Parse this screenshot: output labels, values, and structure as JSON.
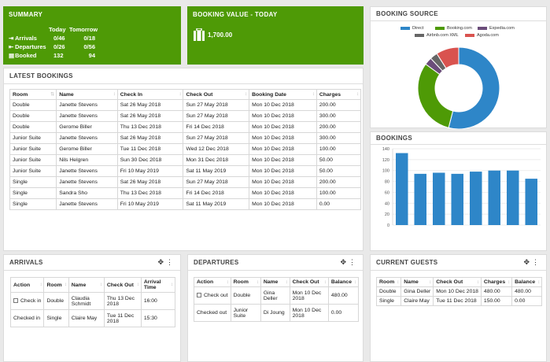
{
  "summary": {
    "title": "SUMMARY",
    "col_today": "Today",
    "col_tomorrow": "Tomorrow",
    "rows": [
      {
        "icon": "arrival-icon",
        "label": "Arrivals",
        "today": "0/46",
        "tomorrow": "0/18"
      },
      {
        "icon": "departure-icon",
        "label": "Departures",
        "today": "0/26",
        "tomorrow": "0/56"
      },
      {
        "icon": "bed-icon",
        "label": "Booked",
        "today": "132",
        "tomorrow": "94"
      }
    ]
  },
  "booking_value": {
    "title": "BOOKING VALUE - TODAY",
    "value": "1,700.00"
  },
  "booking_source": {
    "title": "BOOKING SOURCE",
    "legend": [
      {
        "label": "Direct",
        "color": "#2e86c8"
      },
      {
        "label": "Booking.com",
        "color": "#4e9a06"
      },
      {
        "label": "Expedia.com",
        "color": "#6b4d7a"
      },
      {
        "label": "Airbnb.com XML",
        "color": "#666666"
      },
      {
        "label": "Agoda.com",
        "color": "#d9534f"
      }
    ],
    "chart_data": {
      "type": "pie",
      "categories": [
        "Direct",
        "Booking.com",
        "Expedia.com",
        "Airbnb.com XML",
        "Agoda.com"
      ],
      "values": [
        54,
        31,
        3,
        3,
        9
      ]
    }
  },
  "bookings_chart": {
    "title": "BOOKINGS",
    "chart_data": {
      "type": "bar",
      "categories": [
        "1",
        "2",
        "3",
        "4",
        "5",
        "6",
        "7",
        "8"
      ],
      "values": [
        132,
        94,
        96,
        94,
        98,
        100,
        100,
        85
      ],
      "yticks": [
        "0",
        "20",
        "40",
        "60",
        "80",
        "100",
        "120",
        "140"
      ],
      "ylim": [
        0,
        140
      ],
      "color": "#2e86c8"
    }
  },
  "latest_bookings": {
    "title": "LATEST BOOKINGS",
    "columns": [
      "Room",
      "Name",
      "Check In",
      "Check Out",
      "Booking Date",
      "Charges"
    ],
    "rows": [
      [
        "Double",
        "Janette Stevens",
        "Sat 26 May 2018",
        "Sun 27 May 2018",
        "Mon 10 Dec 2018",
        "200.00"
      ],
      [
        "Double",
        "Janette Stevens",
        "Sat 26 May 2018",
        "Sun 27 May 2018",
        "Mon 10 Dec 2018",
        "300.00"
      ],
      [
        "Double",
        "Gerome Biller",
        "Thu 13 Dec 2018",
        "Fri 14 Dec 2018",
        "Mon 10 Dec 2018",
        "200.00"
      ],
      [
        "Junior Suite",
        "Janette Stevens",
        "Sat 26 May 2018",
        "Sun 27 May 2018",
        "Mon 10 Dec 2018",
        "300.00"
      ],
      [
        "Junior Suite",
        "Gerome Biller",
        "Tue 11 Dec 2018",
        "Wed 12 Dec 2018",
        "Mon 10 Dec 2018",
        "100.00"
      ],
      [
        "Junior Suite",
        "Nils Helgren",
        "Sun 30 Dec 2018",
        "Mon 31 Dec 2018",
        "Mon 10 Dec 2018",
        "50.00"
      ],
      [
        "Junior Suite",
        "Janette Stevens",
        "Fri 10 May 2019",
        "Sat 11 May 2019",
        "Mon 10 Dec 2018",
        "50.00"
      ],
      [
        "Single",
        "Janette Stevens",
        "Sat 26 May 2018",
        "Sun 27 May 2018",
        "Mon 10 Dec 2018",
        "200.00"
      ],
      [
        "Single",
        "Sandra Sho",
        "Thu 13 Dec 2018",
        "Fri 14 Dec 2018",
        "Mon 10 Dec 2018",
        "100.00"
      ],
      [
        "Single",
        "Janette Stevens",
        "Fri 10 May 2019",
        "Sat 11 May 2019",
        "Mon 10 Dec 2018",
        "0.00"
      ]
    ]
  },
  "arrivals": {
    "title": "ARRIVALS",
    "columns": [
      "Action",
      "Room",
      "Name",
      "Check Out",
      "Arrival Time"
    ],
    "rows": [
      {
        "action": "Check in",
        "checkbox": true,
        "room": "Double",
        "name": "Claudia Schmidt",
        "checkout": "Thu 13 Dec 2018",
        "time": "16:00"
      },
      {
        "action": "Checked in",
        "checkbox": false,
        "room": "Single",
        "name": "Claire May",
        "checkout": "Tue 11 Dec 2018",
        "time": "15:30"
      }
    ]
  },
  "departures": {
    "title": "DEPARTURES",
    "columns": [
      "Action",
      "Room",
      "Name",
      "Check Out",
      "Balance"
    ],
    "rows": [
      {
        "action": "Check out",
        "checkbox": true,
        "room": "Double",
        "name": "Gina Deller",
        "checkout": "Mon 10 Dec 2018",
        "balance": "480.00"
      },
      {
        "action": "Checked out",
        "checkbox": false,
        "room": "Junior Suite",
        "name": "Di Joung",
        "checkout": "Mon 10 Dec 2018",
        "balance": "0.00"
      }
    ]
  },
  "current_guests": {
    "title": "CURRENT GUESTS",
    "columns": [
      "Room",
      "Name",
      "Check Out",
      "Charges",
      "Balance"
    ],
    "rows": [
      [
        "Double",
        "Gina Deller",
        "Mon 10 Dec 2018",
        "480.00",
        "480.00"
      ],
      [
        "Single",
        "Claire May",
        "Tue 11 Dec 2018",
        "150.00",
        "0.00"
      ]
    ]
  },
  "tools": {
    "move": "✥",
    "menu": "⋮"
  }
}
